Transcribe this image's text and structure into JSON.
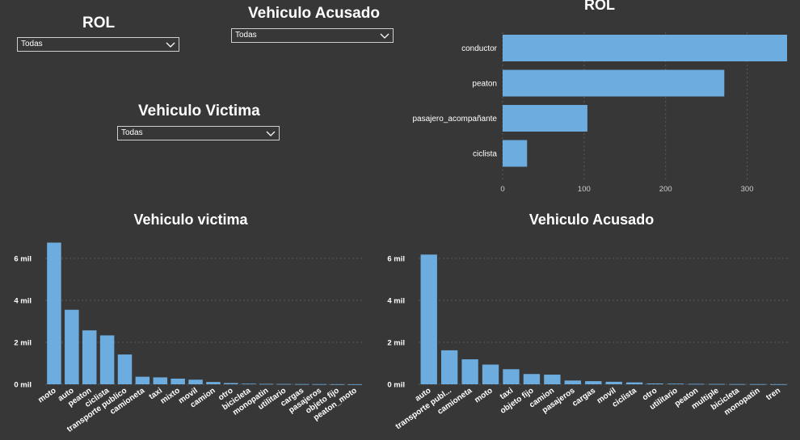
{
  "slicers": {
    "rol": {
      "title": "ROL",
      "value": "Todas"
    },
    "vehiculo_acusado": {
      "title": "Vehiculo Acusado",
      "value": "Todas"
    },
    "vehiculo_victima": {
      "title": "Vehiculo Victima",
      "value": "Todas"
    }
  },
  "colors": {
    "bar": "#6cacde",
    "background": "#373737"
  },
  "chart_data": [
    {
      "type": "bar",
      "orientation": "horizontal",
      "title": "ROL",
      "categories": [
        "conductor",
        "peaton",
        "pasajero_acompañante",
        "ciclista"
      ],
      "values": [
        349,
        272,
        104,
        30
      ],
      "xlim": [
        0,
        349
      ],
      "x_ticks": [
        "0",
        "100",
        "200",
        "300"
      ],
      "grid": "vertical dotted"
    },
    {
      "type": "bar",
      "title": "Vehiculo victima",
      "categories": [
        "moto",
        "auto",
        "peaton",
        "ciclista",
        "transporte publico",
        "camioneta",
        "taxi",
        "mixto",
        "movil",
        "camion",
        "otro",
        "bicicleta",
        "monopatin",
        "utilitario",
        "cargas",
        "pasajeros",
        "objeto fijo",
        "peaton_moto"
      ],
      "values": [
        6750,
        3550,
        2570,
        2330,
        1420,
        360,
        330,
        270,
        220,
        110,
        60,
        30,
        20,
        15,
        10,
        8,
        5,
        3
      ],
      "ylim": [
        0,
        7000
      ],
      "y_ticks": [
        "0 mil",
        "2 mil",
        "4 mil",
        "6 mil"
      ],
      "grid": "horizontal dotted"
    },
    {
      "type": "bar",
      "title": "Vehiculo Acusado",
      "categories": [
        "auto",
        "transporte publ...",
        "camioneta",
        "moto",
        "taxi",
        "objeto fijo",
        "camion",
        "pasajeros",
        "cargas",
        "movil",
        "ciclista",
        "otro",
        "utilitario",
        "peaton",
        "multiple",
        "bicicleta",
        "monopatin",
        "tren"
      ],
      "values": [
        6180,
        1620,
        1190,
        940,
        720,
        490,
        460,
        180,
        150,
        120,
        90,
        40,
        30,
        20,
        15,
        10,
        8,
        5
      ],
      "ylim": [
        0,
        7000
      ],
      "y_ticks": [
        "0 mil",
        "2 mil",
        "4 mil",
        "6 mil"
      ],
      "grid": "horizontal dotted"
    }
  ]
}
